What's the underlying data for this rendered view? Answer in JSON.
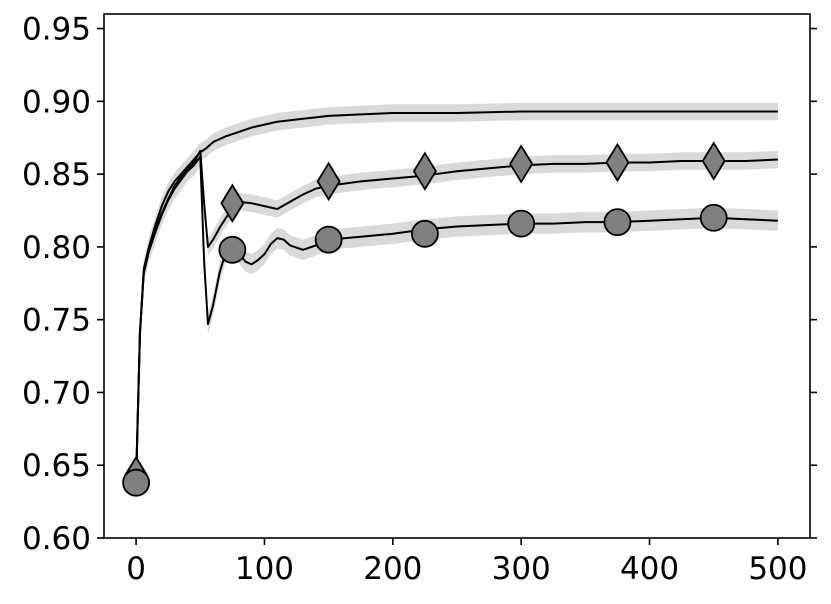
{
  "chart_data": {
    "type": "line",
    "title": "",
    "xlabel": "",
    "ylabel": "",
    "xlim": [
      -25,
      525
    ],
    "ylim": [
      0.6,
      0.96
    ],
    "xticks": [
      0,
      100,
      200,
      300,
      400,
      500
    ],
    "yticks": [
      0.6,
      0.65,
      0.7,
      0.75,
      0.8,
      0.85,
      0.9,
      0.95
    ],
    "xtick_labels": [
      "0",
      "100",
      "200",
      "300",
      "400",
      "500"
    ],
    "ytick_labels": [
      "0.60",
      "0.65",
      "0.70",
      "0.75",
      "0.80",
      "0.85",
      "0.90",
      "0.95"
    ],
    "grid": false,
    "legend": "none",
    "colors": {
      "line": "#000000",
      "band": "#d9d9d9",
      "marker_fill": "#808080",
      "marker_edge": "#000000"
    },
    "series": [
      {
        "marker": "none",
        "band_halfwidth": 0.006,
        "x": [
          0,
          3,
          6,
          10,
          15,
          20,
          25,
          30,
          35,
          40,
          45,
          50,
          55,
          60,
          70,
          80,
          90,
          100,
          110,
          120,
          130,
          140,
          150,
          175,
          200,
          225,
          250,
          300,
          350,
          400,
          450,
          500
        ],
        "values": [
          0.64,
          0.74,
          0.785,
          0.8,
          0.815,
          0.828,
          0.838,
          0.845,
          0.85,
          0.855,
          0.86,
          0.865,
          0.868,
          0.872,
          0.876,
          0.879,
          0.882,
          0.884,
          0.886,
          0.887,
          0.888,
          0.889,
          0.89,
          0.891,
          0.892,
          0.892,
          0.892,
          0.893,
          0.893,
          0.893,
          0.893,
          0.893
        ]
      },
      {
        "marker": "diamond",
        "band_halfwidth": 0.006,
        "x": [
          0,
          3,
          6,
          10,
          15,
          20,
          25,
          30,
          35,
          40,
          45,
          50,
          53,
          56,
          60,
          65,
          70,
          75,
          80,
          90,
          100,
          110,
          120,
          130,
          140,
          150,
          175,
          200,
          225,
          250,
          275,
          300,
          325,
          350,
          375,
          400,
          425,
          450,
          475,
          500
        ],
        "values": [
          0.64,
          0.74,
          0.783,
          0.798,
          0.812,
          0.823,
          0.833,
          0.842,
          0.848,
          0.853,
          0.858,
          0.866,
          0.83,
          0.8,
          0.805,
          0.813,
          0.82,
          0.826,
          0.831,
          0.83,
          0.828,
          0.826,
          0.831,
          0.836,
          0.84,
          0.842,
          0.845,
          0.847,
          0.849,
          0.852,
          0.854,
          0.856,
          0.857,
          0.857,
          0.858,
          0.858,
          0.859,
          0.859,
          0.859,
          0.86
        ],
        "marker_x": [
          0,
          75,
          150,
          225,
          300,
          375,
          450
        ],
        "marker_values": [
          0.643,
          0.83,
          0.845,
          0.852,
          0.857,
          0.858,
          0.859
        ]
      },
      {
        "marker": "circle",
        "band_halfwidth": 0.007,
        "x": [
          0,
          3,
          6,
          10,
          15,
          20,
          25,
          30,
          35,
          40,
          45,
          50,
          53,
          56,
          60,
          65,
          70,
          75,
          80,
          85,
          90,
          95,
          100,
          105,
          110,
          115,
          120,
          130,
          140,
          150,
          175,
          200,
          225,
          250,
          275,
          300,
          325,
          350,
          375,
          400,
          425,
          450,
          475,
          500
        ],
        "values": [
          0.638,
          0.742,
          0.782,
          0.797,
          0.81,
          0.822,
          0.832,
          0.84,
          0.846,
          0.852,
          0.856,
          0.862,
          0.79,
          0.747,
          0.76,
          0.782,
          0.797,
          0.8,
          0.796,
          0.79,
          0.788,
          0.791,
          0.795,
          0.802,
          0.806,
          0.805,
          0.801,
          0.798,
          0.801,
          0.805,
          0.807,
          0.809,
          0.812,
          0.814,
          0.815,
          0.816,
          0.816,
          0.817,
          0.817,
          0.818,
          0.819,
          0.82,
          0.819,
          0.818
        ],
        "marker_x": [
          0,
          75,
          150,
          225,
          300,
          375,
          450
        ],
        "marker_values": [
          0.638,
          0.798,
          0.805,
          0.809,
          0.816,
          0.817,
          0.82
        ]
      }
    ]
  }
}
